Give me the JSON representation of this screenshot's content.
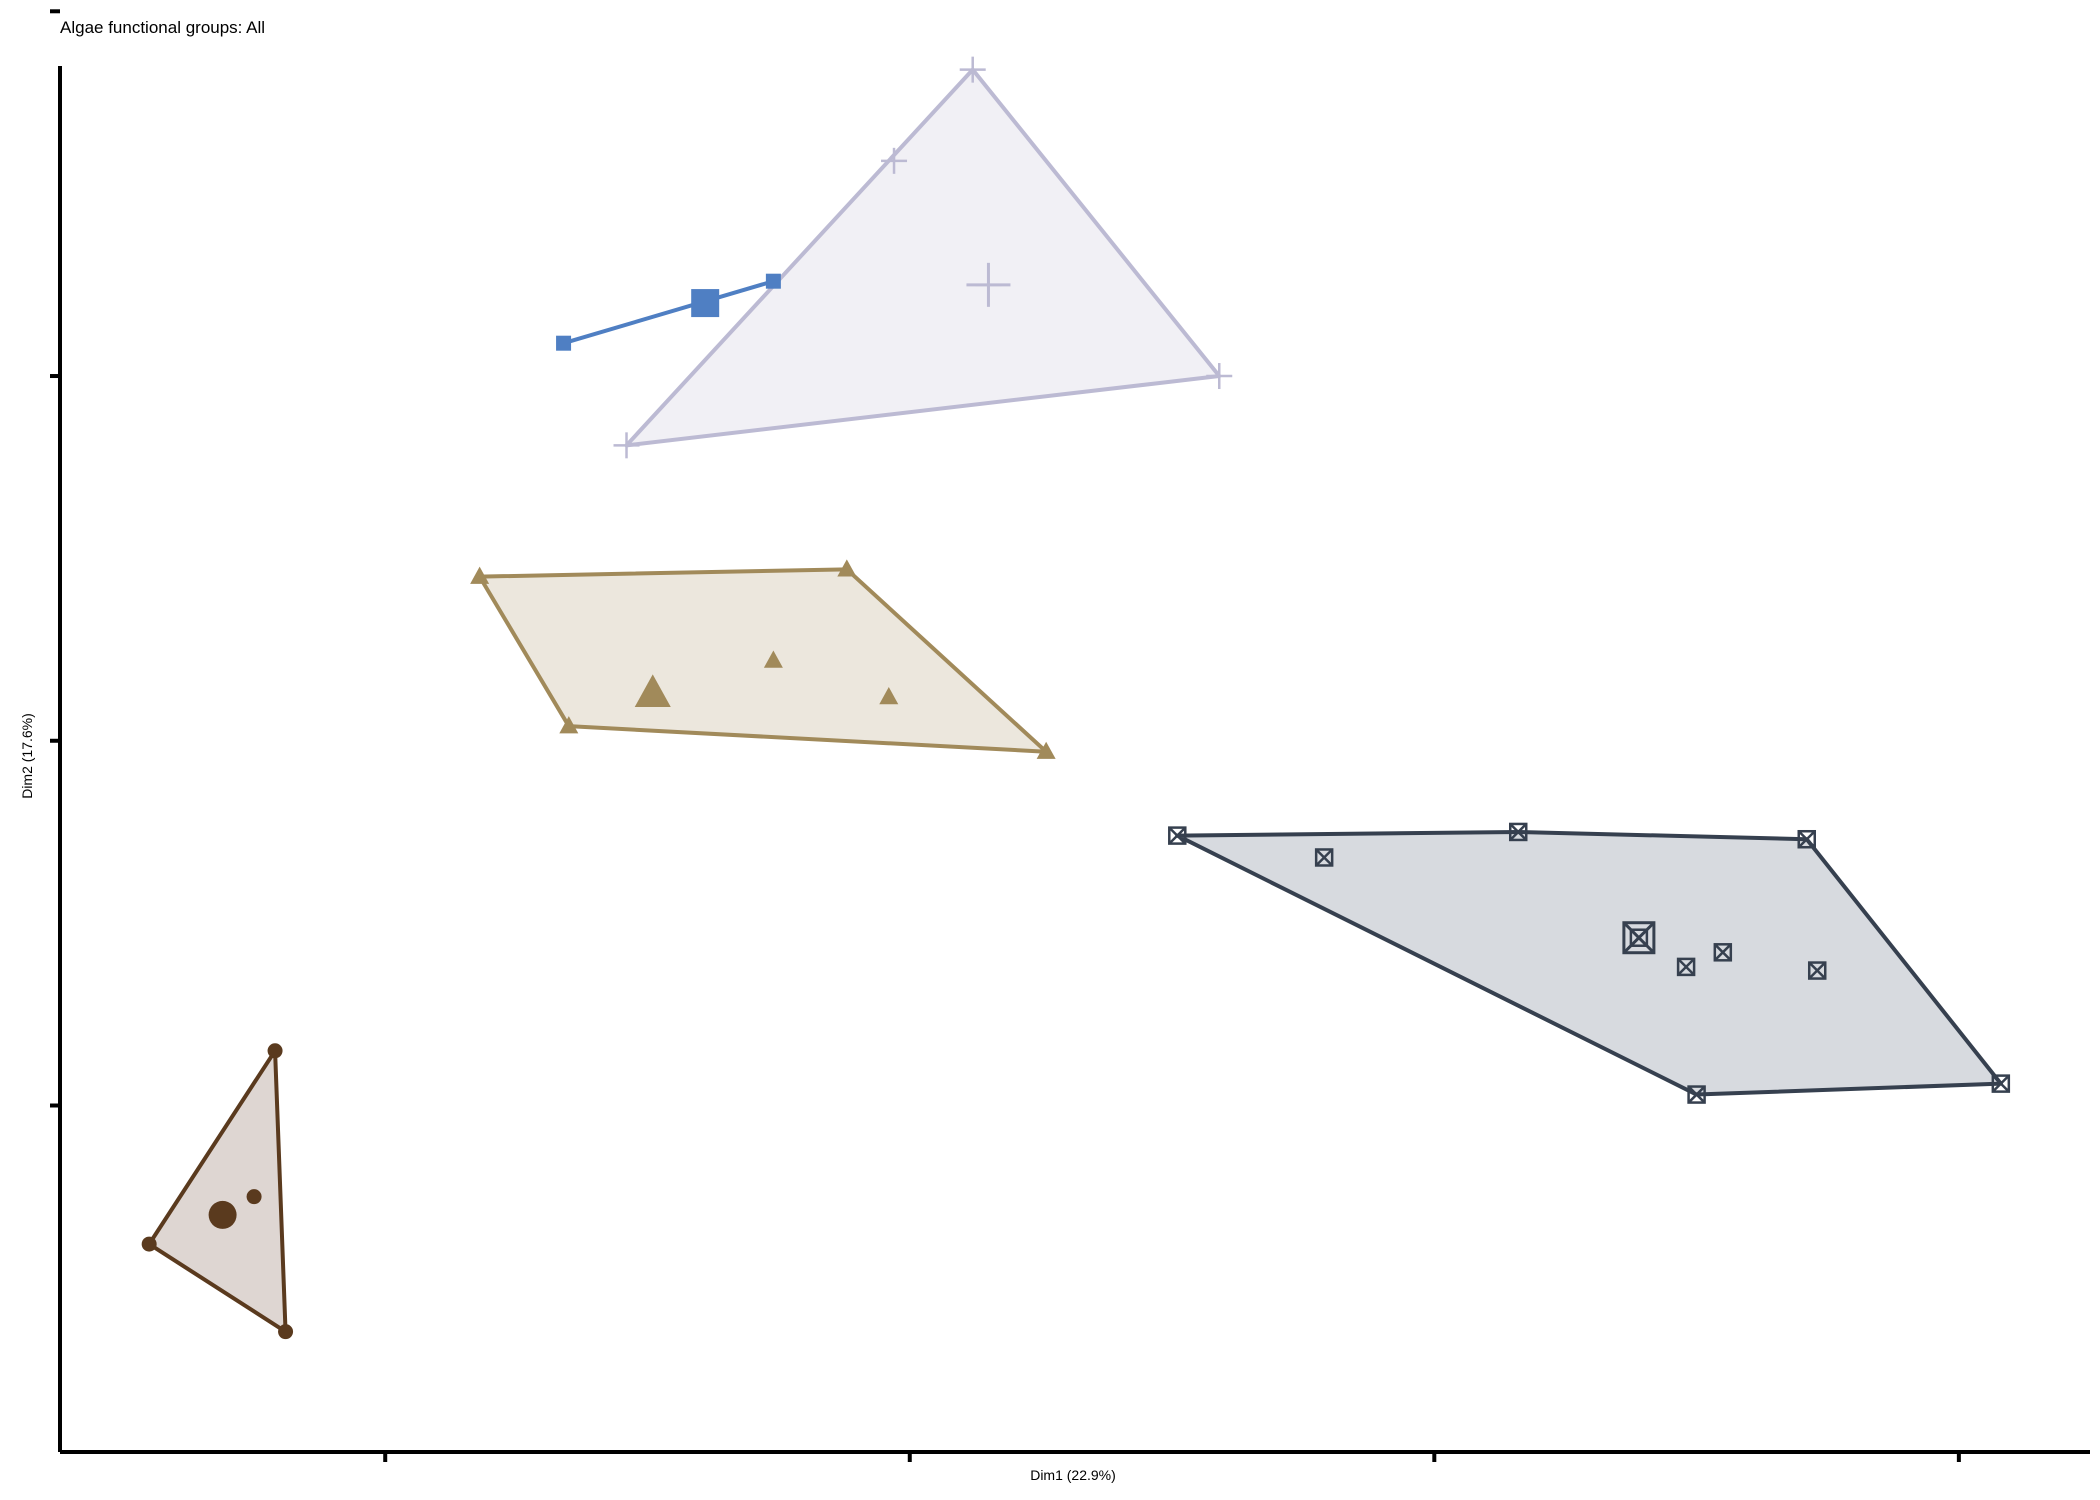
{
  "title": "Algae functional groups: All",
  "chart_data": {
    "type": "scatter",
    "title": "Algae functional groups: All",
    "xlabel": "Dim1 (22.9%)",
    "ylabel": "Dim2 (17.6%)",
    "xlim": [
      -1.62,
      2.25
    ],
    "ylim": [
      -1.95,
      1.85
    ],
    "x_ticks": [
      -1,
      0,
      1,
      2
    ],
    "y_ticks": [
      -1,
      0,
      1,
      2
    ],
    "tick_labels_shown": false,
    "grid": false,
    "legend": "none",
    "series": [
      {
        "marker": "circle",
        "color": "#5a3a1e",
        "fill": "#ded6d2",
        "points": [
          [
            -1.21,
            -0.85
          ],
          [
            -1.45,
            -1.38
          ],
          [
            -1.19,
            -1.62
          ],
          [
            -1.25,
            -1.25
          ]
        ],
        "hull": [
          [
            -1.21,
            -0.85
          ],
          [
            -1.45,
            -1.38
          ],
          [
            -1.19,
            -1.62
          ]
        ],
        "centroid": [
          -1.31,
          -1.3
        ]
      },
      {
        "marker": "square",
        "color": "#4f7fc3",
        "fill": null,
        "points": [
          [
            -0.66,
            1.09
          ],
          [
            -0.26,
            1.26
          ]
        ],
        "hull": [
          [
            -0.66,
            1.09
          ],
          [
            -0.26,
            1.26
          ]
        ],
        "centroid": [
          -0.39,
          1.2
        ]
      },
      {
        "marker": "plus",
        "color": "#bcbad3",
        "fill": "#f1f0f5",
        "points": [
          [
            0.12,
            1.84
          ],
          [
            -0.03,
            1.59
          ],
          [
            0.59,
            1.0
          ],
          [
            -0.54,
            0.81
          ],
          [
            0.15,
            1.25
          ]
        ],
        "hull": [
          [
            0.12,
            1.84
          ],
          [
            0.59,
            1.0
          ],
          [
            -0.54,
            0.81
          ]
        ],
        "centroid": [
          0.15,
          1.25
        ]
      },
      {
        "marker": "triangle",
        "color": "#a18a5a",
        "fill": "#ece7dd",
        "points": [
          [
            -0.82,
            0.45
          ],
          [
            -0.12,
            0.47
          ],
          [
            0.26,
            -0.03
          ],
          [
            -0.65,
            0.04
          ],
          [
            -0.26,
            0.22
          ],
          [
            -0.04,
            0.12
          ],
          [
            -0.49,
            0.13
          ]
        ],
        "hull": [
          [
            -0.82,
            0.45
          ],
          [
            -0.12,
            0.47
          ],
          [
            0.26,
            -0.03
          ],
          [
            -0.65,
            0.04
          ]
        ],
        "centroid": [
          -0.49,
          0.13
        ]
      },
      {
        "marker": "square-x",
        "color": "#36404f",
        "fill": "#d7dadf",
        "points": [
          [
            0.51,
            -0.26
          ],
          [
            1.16,
            -0.25
          ],
          [
            1.71,
            -0.27
          ],
          [
            1.5,
            -0.97
          ],
          [
            2.08,
            -0.94
          ],
          [
            0.79,
            -0.32
          ],
          [
            1.48,
            -0.62
          ],
          [
            1.55,
            -0.58
          ],
          [
            1.73,
            -0.63
          ],
          [
            1.39,
            -0.54
          ]
        ],
        "hull": [
          [
            0.51,
            -0.26
          ],
          [
            1.16,
            -0.25
          ],
          [
            1.71,
            -0.27
          ],
          [
            2.08,
            -0.94
          ],
          [
            1.5,
            -0.97
          ]
        ],
        "centroid": [
          1.39,
          -0.54
        ]
      }
    ]
  }
}
